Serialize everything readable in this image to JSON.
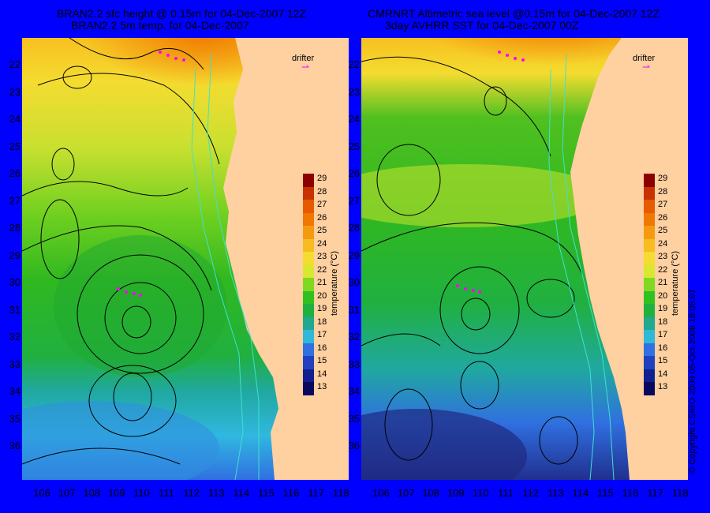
{
  "left_panel": {
    "title_line1": "BRAN2.2 sfc height @ 0.15m for 04-Dec-2007 12Z",
    "title_line2": "BRAN2.2 5m temp. for 04-Dec-2007",
    "drifter_label": "drifter"
  },
  "right_panel": {
    "title_line1": "CMRNRT Altimetric sea level  @0.15m  for 04-Dec-2007 12Z",
    "title_line2": "3day AVHRR SST for 04-Dec-2007 00Z",
    "drifter_label": "drifter"
  },
  "latitude_labels": [
    "22",
    "23",
    "24",
    "25",
    "26",
    "27",
    "28",
    "29",
    "30",
    "31",
    "32",
    "33",
    "34",
    "35",
    "36"
  ],
  "longitude_labels": [
    "106",
    "107",
    "108",
    "109",
    "110",
    "111",
    "112",
    "113",
    "114",
    "115",
    "116",
    "117",
    "118"
  ],
  "colorbar": {
    "title": "temperature (°C)",
    "ticks": [
      "29",
      "28",
      "27",
      "26",
      "25",
      "24",
      "23",
      "22",
      "21",
      "20",
      "19",
      "18",
      "17",
      "16",
      "15",
      "14",
      "13"
    ],
    "colors": [
      "#8b0000",
      "#c83200",
      "#e65a00",
      "#f07800",
      "#f59a10",
      "#f8bb20",
      "#f4dc30",
      "#d8e830",
      "#80d820",
      "#30c020",
      "#20b040",
      "#20a890",
      "#30b8d8",
      "#3070e0",
      "#2040c0",
      "#102090",
      "#080860"
    ]
  },
  "copyright": "© Copyright CSIRO 2008    05-Oct-2008 18:05:07",
  "colors": {
    "background": "#0000ff",
    "land": "#ffd0a0",
    "contour": "#000000",
    "bathymetry": "#40e0d0",
    "drifter": "#ff00ff"
  }
}
